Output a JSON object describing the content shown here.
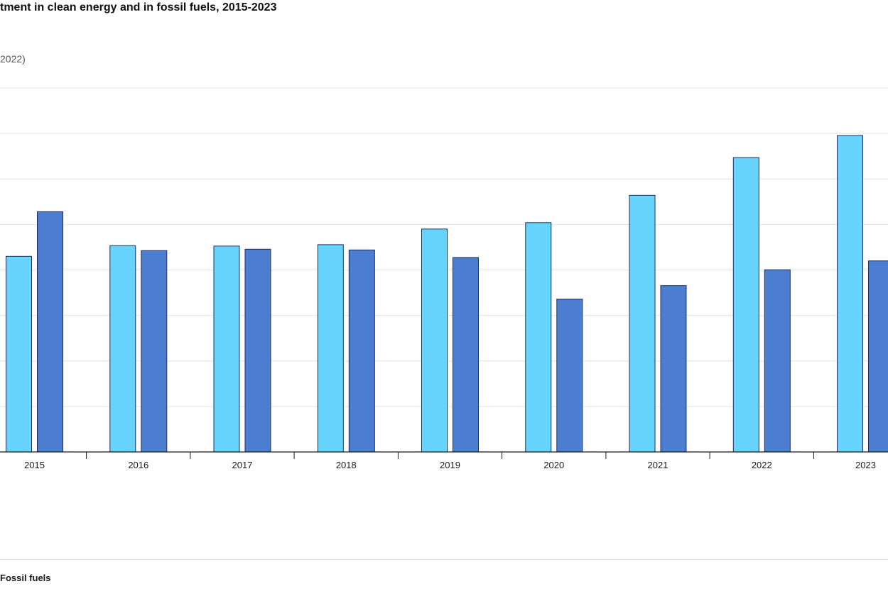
{
  "header": {
    "title": "tment in clean energy and in fossil fuels, 2015-2023",
    "subtitle": "2022)"
  },
  "legend": {
    "visible_label": "Fossil fuels"
  },
  "colors": {
    "clean": "#66d4fd",
    "fossil": "#4b7dd1",
    "bar_stroke": "#1f2d5c",
    "grid": "#e3e3e3",
    "axis": "#1a1a1a"
  },
  "chart_data": {
    "type": "bar",
    "categories": [
      "2015",
      "2016",
      "2017",
      "2018",
      "2019",
      "2020",
      "2021",
      "2022",
      "2023"
    ],
    "series": [
      {
        "key": "clean",
        "values": [
          860,
          907,
          905,
          911,
          980,
          1008,
          1128,
          1294,
          1391
        ]
      },
      {
        "name": "Fossil fuels",
        "key": "fossil",
        "values": [
          1056,
          885,
          891,
          888,
          855,
          672,
          731,
          801,
          840
        ]
      }
    ],
    "ylim": [
      0,
      1600
    ],
    "grid": true,
    "legend": "bottom"
  }
}
